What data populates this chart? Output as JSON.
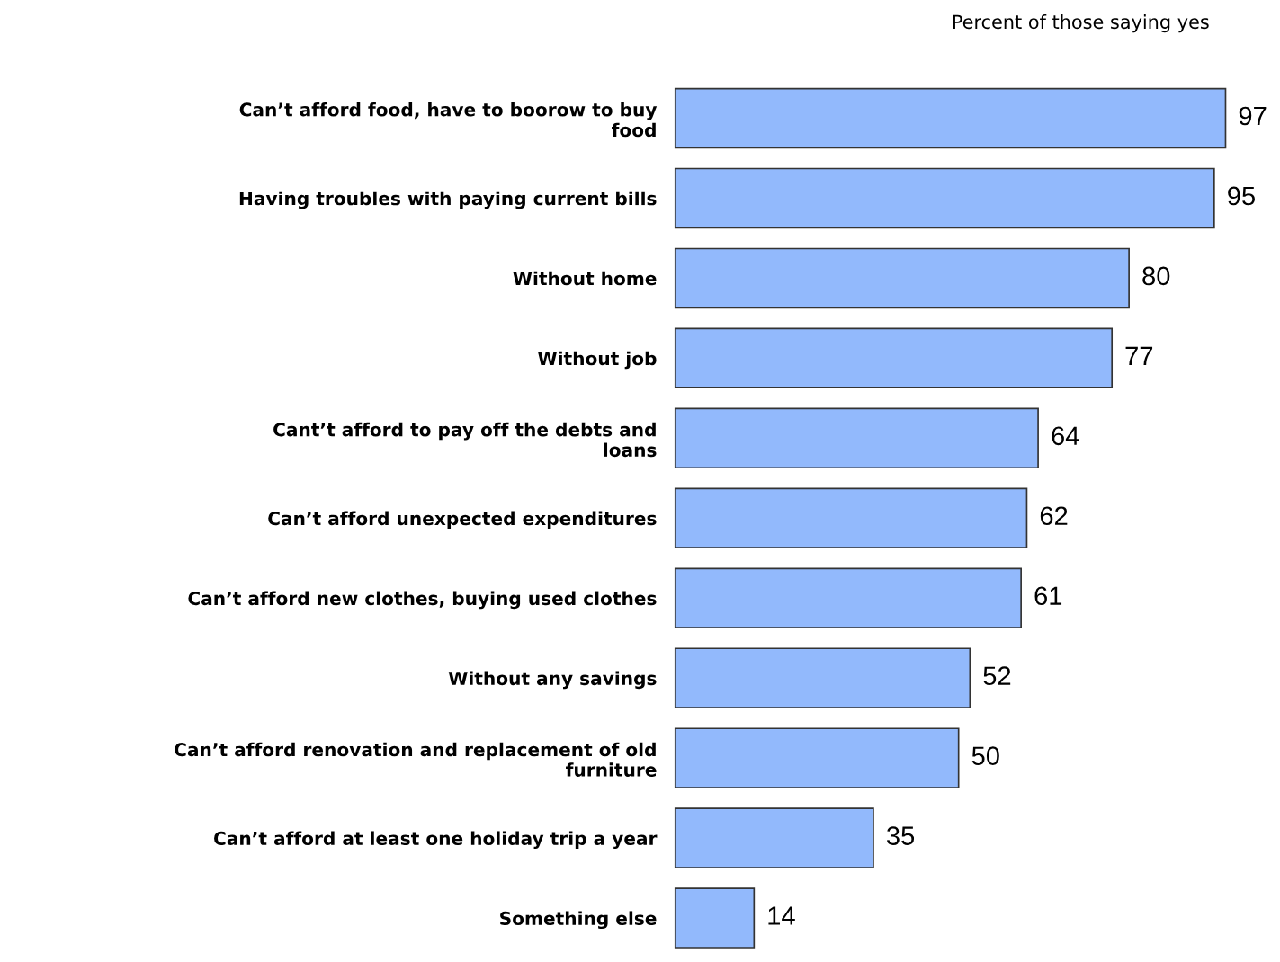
{
  "chart_data": {
    "type": "bar",
    "orientation": "horizontal",
    "title": "Percent of those saying yes",
    "categories": [
      "Can’t afford food, have to boorow to buy\nfood",
      "Having troubles with paying current bills",
      "Without home",
      "Without job",
      "Cant’t afford to pay off the debts and\nloans",
      "Can’t afford unexpected expenditures",
      "Can’t afford new clothes, buying used clothes",
      "Without any savings",
      "Can’t afford renovation and replacement of old\nfurniture",
      "Can’t afford at least one holiday trip a year",
      "Something else"
    ],
    "values": [
      97,
      95,
      80,
      77,
      64,
      62,
      61,
      52,
      50,
      35,
      14
    ],
    "color": "#92b9fc",
    "data_labels": true,
    "grid": false,
    "legend": false
  }
}
